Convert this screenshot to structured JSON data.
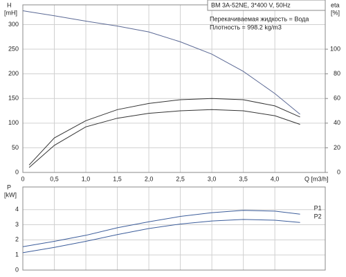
{
  "chart_data": [
    {
      "type": "line",
      "ylabel": "H",
      "yunit": "[mH]",
      "y2label": "eta",
      "y2unit": "[%]",
      "xlabel": "Q [m3/h]",
      "annotations": [
        "BM 3A-52NE, 3*400 V, 50Hz",
        "Перекачиваемая жидкость = Вода",
        "Плотность = 998.2 kg/m3"
      ],
      "x": [
        0,
        0.1,
        0.5,
        1.0,
        1.5,
        2.0,
        2.5,
        3.0,
        3.5,
        4.0,
        4.4
      ],
      "series": [
        {
          "color": "#5a6894",
          "values": [
            328,
            326,
            318,
            307,
            297,
            285,
            265,
            240,
            205,
            160,
            118
          ]
        },
        {
          "color": "#333333",
          "axis": "y2",
          "values": [
            null,
            6,
            28,
            42,
            51,
            56,
            59,
            60,
            59,
            54,
            45
          ]
        },
        {
          "color": "#333333",
          "axis": "y2",
          "values": [
            null,
            4,
            22,
            37,
            44,
            48,
            50,
            51,
            50,
            46,
            39
          ]
        }
      ],
      "xlim": [
        0,
        4.8
      ],
      "xticks": [
        0,
        {
          "value": 0.5,
          "label": "0,5"
        },
        {
          "value": 1.0,
          "label": "1,0"
        },
        {
          "value": 1.5,
          "label": "1,5"
        },
        {
          "value": 2.0,
          "label": "2,0"
        },
        {
          "value": 2.5,
          "label": "2,5"
        },
        {
          "value": 3.0,
          "label": "3,0"
        },
        {
          "value": 3.5,
          "label": "3,5"
        },
        {
          "value": 4.0,
          "label": "4,0"
        }
      ],
      "ylim": [
        0,
        340
      ],
      "yticks": [
        0,
        50,
        100,
        150,
        200,
        250,
        300
      ],
      "y2lim": [
        0,
        136
      ],
      "y2ticks": [
        0,
        20,
        40,
        60,
        80,
        100
      ],
      "grid": true
    },
    {
      "type": "line",
      "ylabel": "P",
      "yunit": "[kW]",
      "x": [
        0,
        0.5,
        1.0,
        1.5,
        2.0,
        2.5,
        3.0,
        3.5,
        4.0,
        4.4
      ],
      "series": [
        {
          "name": "P1",
          "color": "#3b5c9a",
          "values": [
            1.55,
            1.9,
            2.3,
            2.8,
            3.2,
            3.55,
            3.8,
            3.95,
            3.9,
            3.7
          ]
        },
        {
          "name": "P2",
          "color": "#3b5c9a",
          "values": [
            1.15,
            1.5,
            1.9,
            2.35,
            2.75,
            3.05,
            3.25,
            3.35,
            3.3,
            3.15
          ]
        }
      ],
      "xlim": [
        0,
        4.8
      ],
      "xticks": [
        0,
        0.5,
        1.0,
        1.5,
        2.0,
        2.5,
        3.0,
        3.5,
        4.0
      ],
      "ylim": [
        0,
        5.5
      ],
      "yticks": [
        0,
        1,
        2,
        3,
        4
      ],
      "grid": true
    }
  ]
}
